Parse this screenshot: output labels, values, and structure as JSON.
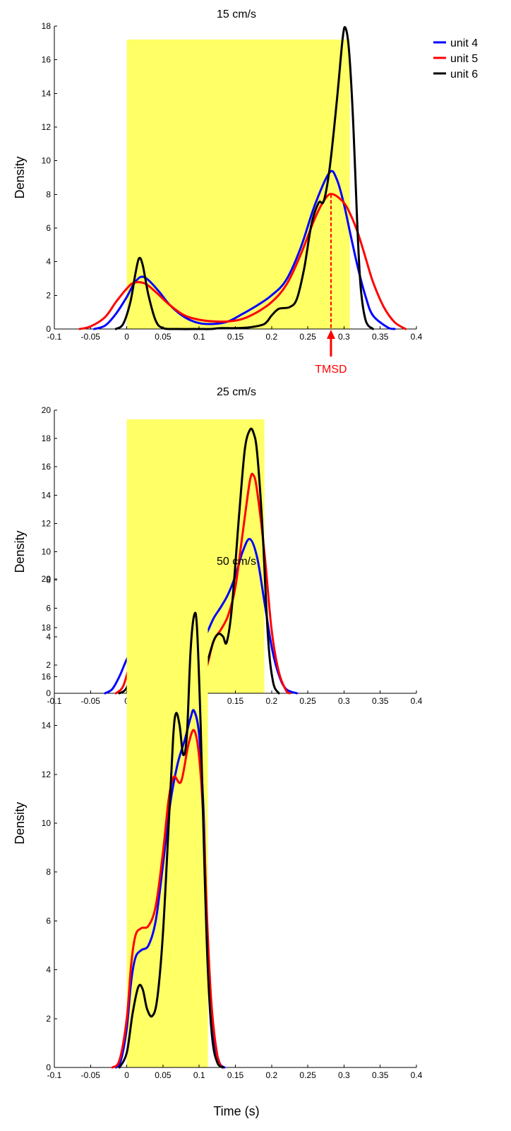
{
  "colors": {
    "unit4": "#0000ff",
    "unit5": "#ff0000",
    "unit6": "#000000",
    "highlight": "#ffff66",
    "annotation": "#ff0000"
  },
  "legend": {
    "placement": "top-right",
    "items": [
      {
        "label": "unit 4",
        "color_key": "unit4"
      },
      {
        "label": "unit 5",
        "color_key": "unit5"
      },
      {
        "label": "unit 6",
        "color_key": "unit6"
      }
    ]
  },
  "annotation": {
    "label": "TMSD",
    "panel": 0,
    "x": 0.282
  },
  "xlabel": "Time (s)",
  "chart_data": [
    {
      "type": "line",
      "title": "15 cm/s",
      "xlabel": "",
      "ylabel": "Density",
      "xlim": [
        -0.1,
        0.4
      ],
      "ylim": [
        0,
        18
      ],
      "xticks": [
        "-0.1",
        "-0.05",
        "0",
        "0.05",
        "0.1",
        "0.15",
        "0.2",
        "0.25",
        "0.3",
        "0.35",
        "0.4"
      ],
      "yticks": [
        "0",
        "2",
        "4",
        "6",
        "8",
        "10",
        "12",
        "14",
        "16",
        "18"
      ],
      "highlight": [
        0,
        0.308
      ],
      "series": [
        {
          "name": "unit 4",
          "color_key": "unit4",
          "points": [
            [
              -0.045,
              0
            ],
            [
              -0.03,
              0.2
            ],
            [
              -0.015,
              0.9
            ],
            [
              0,
              1.9
            ],
            [
              0.01,
              2.7
            ],
            [
              0.02,
              3.1
            ],
            [
              0.03,
              2.9
            ],
            [
              0.045,
              2.2
            ],
            [
              0.06,
              1.4
            ],
            [
              0.08,
              0.7
            ],
            [
              0.1,
              0.35
            ],
            [
              0.12,
              0.3
            ],
            [
              0.14,
              0.45
            ],
            [
              0.16,
              0.9
            ],
            [
              0.18,
              1.4
            ],
            [
              0.2,
              2.0
            ],
            [
              0.22,
              2.9
            ],
            [
              0.24,
              4.8
            ],
            [
              0.26,
              7.4
            ],
            [
              0.28,
              9.3
            ],
            [
              0.29,
              8.9
            ],
            [
              0.3,
              7.4
            ],
            [
              0.31,
              5.4
            ],
            [
              0.32,
              3.5
            ],
            [
              0.33,
              1.9
            ],
            [
              0.34,
              0.8
            ],
            [
              0.36,
              0.1
            ],
            [
              0.37,
              0
            ]
          ]
        },
        {
          "name": "unit 5",
          "color_key": "unit5",
          "points": [
            [
              -0.065,
              0
            ],
            [
              -0.05,
              0.15
            ],
            [
              -0.03,
              0.7
            ],
            [
              -0.015,
              1.6
            ],
            [
              0,
              2.4
            ],
            [
              0.01,
              2.75
            ],
            [
              0.025,
              2.7
            ],
            [
              0.04,
              2.2
            ],
            [
              0.06,
              1.4
            ],
            [
              0.08,
              0.8
            ],
            [
              0.1,
              0.55
            ],
            [
              0.12,
              0.45
            ],
            [
              0.14,
              0.45
            ],
            [
              0.16,
              0.6
            ],
            [
              0.18,
              1.0
            ],
            [
              0.2,
              1.6
            ],
            [
              0.22,
              2.6
            ],
            [
              0.24,
              4.4
            ],
            [
              0.26,
              6.6
            ],
            [
              0.275,
              7.8
            ],
            [
              0.285,
              8.0
            ],
            [
              0.3,
              7.5
            ],
            [
              0.31,
              6.7
            ],
            [
              0.32,
              5.6
            ],
            [
              0.33,
              4.2
            ],
            [
              0.34,
              2.8
            ],
            [
              0.355,
              1.3
            ],
            [
              0.37,
              0.4
            ],
            [
              0.385,
              0
            ]
          ]
        },
        {
          "name": "unit 6",
          "color_key": "unit6",
          "points": [
            [
              -0.015,
              0
            ],
            [
              -0.005,
              0.3
            ],
            [
              0.005,
              1.6
            ],
            [
              0.012,
              3.3
            ],
            [
              0.017,
              4.2
            ],
            [
              0.022,
              3.8
            ],
            [
              0.03,
              2.0
            ],
            [
              0.04,
              0.5
            ],
            [
              0.05,
              0.05
            ],
            [
              0.07,
              0
            ],
            [
              0.1,
              0
            ],
            [
              0.115,
              0
            ],
            [
              0.13,
              0.05
            ],
            [
              0.15,
              0.05
            ],
            [
              0.17,
              0.1
            ],
            [
              0.19,
              0.3
            ],
            [
              0.2,
              0.8
            ],
            [
              0.21,
              1.2
            ],
            [
              0.225,
              1.3
            ],
            [
              0.235,
              1.8
            ],
            [
              0.245,
              3.6
            ],
            [
              0.255,
              6.2
            ],
            [
              0.265,
              7.5
            ],
            [
              0.272,
              7.6
            ],
            [
              0.28,
              9.5
            ],
            [
              0.29,
              13.5
            ],
            [
              0.298,
              17.2
            ],
            [
              0.302,
              17.9
            ],
            [
              0.307,
              16.5
            ],
            [
              0.313,
              12.0
            ],
            [
              0.318,
              6.5
            ],
            [
              0.323,
              2.5
            ],
            [
              0.33,
              0.5
            ],
            [
              0.34,
              0
            ]
          ]
        }
      ]
    },
    {
      "type": "line",
      "title": "25 cm/s",
      "xlabel": "",
      "ylabel": "Density",
      "xlim": [
        -0.1,
        0.4
      ],
      "ylim": [
        0,
        20
      ],
      "xticks": [
        "-0.1",
        "-0.05",
        "0",
        "0.05",
        "0.1",
        "0.15",
        "0.2",
        "0.25",
        "0.3",
        "0.35",
        "0.4"
      ],
      "yticks": [
        "0",
        "2",
        "4",
        "6",
        "8",
        "10",
        "12",
        "14",
        "16",
        "18",
        "20"
      ],
      "highlight": [
        0,
        0.19
      ],
      "series": [
        {
          "name": "unit 4",
          "color_key": "unit4",
          "points": [
            [
              -0.03,
              0
            ],
            [
              -0.02,
              0.3
            ],
            [
              -0.01,
              1.2
            ],
            [
              0,
              2.4
            ],
            [
              0.01,
              3.2
            ],
            [
              0.02,
              3.6
            ],
            [
              0.03,
              3.2
            ],
            [
              0.04,
              2.3
            ],
            [
              0.05,
              1.5
            ],
            [
              0.06,
              1.4
            ],
            [
              0.07,
              1.8
            ],
            [
              0.08,
              2.1
            ],
            [
              0.09,
              2.4
            ],
            [
              0.1,
              3.3
            ],
            [
              0.11,
              4.2
            ],
            [
              0.12,
              5.3
            ],
            [
              0.13,
              6.1
            ],
            [
              0.14,
              7.0
            ],
            [
              0.15,
              8.3
            ],
            [
              0.16,
              10.0
            ],
            [
              0.17,
              10.9
            ],
            [
              0.18,
              9.6
            ],
            [
              0.19,
              6.5
            ],
            [
              0.2,
              3.3
            ],
            [
              0.21,
              1.3
            ],
            [
              0.22,
              0.3
            ],
            [
              0.235,
              0
            ]
          ]
        },
        {
          "name": "unit 5",
          "color_key": "unit5",
          "points": [
            [
              -0.015,
              0
            ],
            [
              -0.005,
              0.5
            ],
            [
              0.005,
              2.2
            ],
            [
              0.015,
              3.9
            ],
            [
              0.022,
              4.3
            ],
            [
              0.03,
              3.6
            ],
            [
              0.04,
              2.0
            ],
            [
              0.05,
              1.0
            ],
            [
              0.06,
              0.8
            ],
            [
              0.07,
              1.0
            ],
            [
              0.08,
              1.0
            ],
            [
              0.09,
              0.6
            ],
            [
              0.1,
              0.7
            ],
            [
              0.11,
              1.8
            ],
            [
              0.12,
              3.7
            ],
            [
              0.13,
              4.5
            ],
            [
              0.14,
              5.5
            ],
            [
              0.15,
              7.5
            ],
            [
              0.16,
              11.3
            ],
            [
              0.17,
              15.0
            ],
            [
              0.175,
              15.4
            ],
            [
              0.18,
              14.3
            ],
            [
              0.19,
              10.0
            ],
            [
              0.2,
              4.5
            ],
            [
              0.21,
              1.5
            ],
            [
              0.22,
              0.2
            ],
            [
              0.225,
              0
            ]
          ]
        },
        {
          "name": "unit 6",
          "color_key": "unit6",
          "points": [
            [
              -0.01,
              0
            ],
            [
              0,
              0.4
            ],
            [
              0.01,
              2.0
            ],
            [
              0.018,
              2.9
            ],
            [
              0.025,
              2.3
            ],
            [
              0.035,
              0.6
            ],
            [
              0.045,
              0.05
            ],
            [
              0.06,
              0.2
            ],
            [
              0.07,
              0.9
            ],
            [
              0.077,
              1.2
            ],
            [
              0.085,
              0.7
            ],
            [
              0.093,
              0.3
            ],
            [
              0.1,
              0.5
            ],
            [
              0.11,
              2.0
            ],
            [
              0.12,
              3.7
            ],
            [
              0.127,
              4.2
            ],
            [
              0.133,
              4.0
            ],
            [
              0.138,
              3.6
            ],
            [
              0.145,
              6.0
            ],
            [
              0.155,
              12.5
            ],
            [
              0.163,
              17.2
            ],
            [
              0.17,
              18.6
            ],
            [
              0.175,
              18.4
            ],
            [
              0.18,
              17.0
            ],
            [
              0.187,
              12.0
            ],
            [
              0.195,
              4.0
            ],
            [
              0.202,
              0.8
            ],
            [
              0.21,
              0
            ]
          ]
        }
      ]
    },
    {
      "type": "line",
      "title": "50 cm/s",
      "xlabel": "Time (s)",
      "ylabel": "Density",
      "xlim": [
        -0.1,
        0.4
      ],
      "ylim": [
        0,
        20
      ],
      "xticks": [
        "-0.1",
        "-0.05",
        "0",
        "0.05",
        "0.1",
        "0.15",
        "0.2",
        "0.25",
        "0.3",
        "0.35",
        "0.4"
      ],
      "yticks": [
        "0",
        "2",
        "4",
        "6",
        "8",
        "10",
        "12",
        "14",
        "16",
        "18",
        "20"
      ],
      "highlight": [
        0,
        0.112
      ],
      "series": [
        {
          "name": "unit 4",
          "color_key": "unit4",
          "points": [
            [
              -0.015,
              0
            ],
            [
              -0.008,
              0.3
            ],
            [
              0,
              1.6
            ],
            [
              0.006,
              3.5
            ],
            [
              0.012,
              4.5
            ],
            [
              0.02,
              4.8
            ],
            [
              0.03,
              5.0
            ],
            [
              0.04,
              6.0
            ],
            [
              0.05,
              8.3
            ],
            [
              0.06,
              10.8
            ],
            [
              0.07,
              12.4
            ],
            [
              0.08,
              13.4
            ],
            [
              0.088,
              14.3
            ],
            [
              0.093,
              14.6
            ],
            [
              0.1,
              13.6
            ],
            [
              0.106,
              10.5
            ],
            [
              0.11,
              6.5
            ],
            [
              0.115,
              3.0
            ],
            [
              0.12,
              1.2
            ],
            [
              0.128,
              0.2
            ],
            [
              0.135,
              0
            ]
          ]
        },
        {
          "name": "unit 5",
          "color_key": "unit5",
          "points": [
            [
              -0.02,
              0
            ],
            [
              -0.01,
              0.3
            ],
            [
              0,
              2.0
            ],
            [
              0.006,
              4.2
            ],
            [
              0.012,
              5.4
            ],
            [
              0.02,
              5.7
            ],
            [
              0.03,
              5.8
            ],
            [
              0.04,
              6.6
            ],
            [
              0.05,
              8.8
            ],
            [
              0.058,
              11.0
            ],
            [
              0.065,
              11.9
            ],
            [
              0.075,
              11.7
            ],
            [
              0.085,
              13.2
            ],
            [
              0.093,
              13.8
            ],
            [
              0.1,
              12.7
            ],
            [
              0.106,
              10.0
            ],
            [
              0.111,
              6.0
            ],
            [
              0.117,
              2.6
            ],
            [
              0.125,
              0.5
            ],
            [
              0.132,
              0
            ]
          ]
        },
        {
          "name": "unit 6",
          "color_key": "unit6",
          "points": [
            [
              -0.01,
              0
            ],
            [
              0,
              0.6
            ],
            [
              0.008,
              2.2
            ],
            [
              0.016,
              3.3
            ],
            [
              0.022,
              3.2
            ],
            [
              0.028,
              2.4
            ],
            [
              0.035,
              2.1
            ],
            [
              0.042,
              2.8
            ],
            [
              0.05,
              5.5
            ],
            [
              0.058,
              10.0
            ],
            [
              0.064,
              13.5
            ],
            [
              0.068,
              14.5
            ],
            [
              0.073,
              14.0
            ],
            [
              0.078,
              12.8
            ],
            [
              0.083,
              13.6
            ],
            [
              0.088,
              17.0
            ],
            [
              0.093,
              18.5
            ],
            [
              0.097,
              18.0
            ],
            [
              0.102,
              14.0
            ],
            [
              0.107,
              8.5
            ],
            [
              0.112,
              4.0
            ],
            [
              0.118,
              1.2
            ],
            [
              0.125,
              0.2
            ],
            [
              0.133,
              0
            ]
          ]
        }
      ]
    }
  ]
}
